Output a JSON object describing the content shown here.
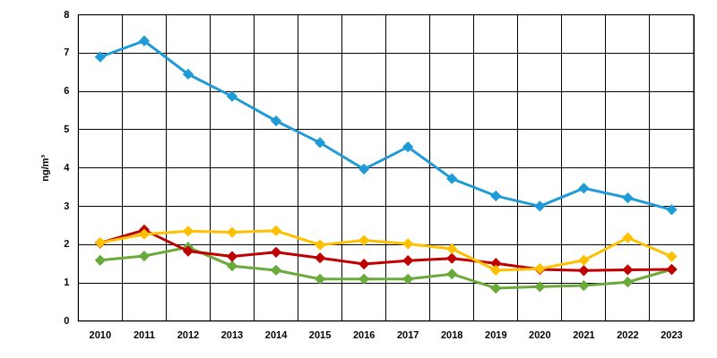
{
  "chart_data": {
    "type": "line",
    "ylabel": "ng/m³",
    "categories": [
      "2010",
      "2011",
      "2012",
      "2013",
      "2014",
      "2015",
      "2016",
      "2017",
      "2018",
      "2019",
      "2020",
      "2021",
      "2022",
      "2023"
    ],
    "series": [
      {
        "color": "#1f9bd7",
        "marker": "diamond",
        "values": [
          6.9,
          7.32,
          6.45,
          5.87,
          5.23,
          4.66,
          3.97,
          4.55,
          3.72,
          3.27,
          3.0,
          3.47,
          3.22,
          2.91
        ]
      },
      {
        "color": "#ffc000",
        "marker": "diamond",
        "values": [
          2.05,
          2.27,
          2.35,
          2.32,
          2.36,
          1.99,
          2.11,
          2.02,
          1.89,
          1.33,
          1.37,
          1.59,
          2.18,
          1.69
        ]
      },
      {
        "color": "#c00000",
        "marker": "diamond",
        "values": [
          2.04,
          2.38,
          1.83,
          1.69,
          1.8,
          1.65,
          1.49,
          1.58,
          1.64,
          1.51,
          1.35,
          1.32,
          1.34,
          1.35
        ]
      },
      {
        "color": "#6aaa3a",
        "marker": "diamond",
        "values": [
          1.59,
          1.7,
          1.93,
          1.44,
          1.33,
          1.1,
          1.1,
          1.1,
          1.23,
          0.86,
          0.9,
          0.93,
          1.02,
          1.35
        ]
      }
    ],
    "ylim": [
      0,
      8
    ],
    "yticks": [
      0,
      1,
      2,
      3,
      4,
      5,
      6,
      7,
      8
    ],
    "grid": true
  }
}
